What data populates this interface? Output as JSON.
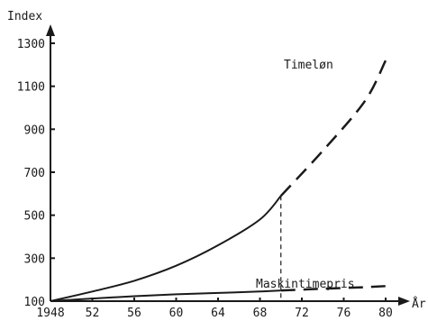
{
  "chart_data": {
    "type": "line",
    "title": "",
    "ylabel": "Index",
    "xlabel": "År",
    "xlim": [
      1948,
      1981
    ],
    "ylim": [
      100,
      1400
    ],
    "x_ticks": [
      1948,
      1952,
      1956,
      1960,
      1964,
      1968,
      1972,
      1976,
      1980
    ],
    "x_tick_labels": [
      "1948",
      "52",
      "56",
      "60",
      "64",
      "68",
      "72",
      "76",
      "80"
    ],
    "y_ticks": [
      100,
      300,
      500,
      700,
      900,
      1100,
      1300
    ],
    "y_tick_labels": [
      "100",
      "300",
      "500",
      "700",
      "900",
      "1100",
      "1300"
    ],
    "grid": false,
    "series": [
      {
        "name": "Timeløn",
        "color": "#1a1a1a",
        "x": [
          1948,
          1952,
          1956,
          1960,
          1964,
          1968,
          1970
        ],
        "y": [
          100,
          145,
          195,
          265,
          360,
          480,
          590
        ],
        "projection": {
          "x": [
            1970,
            1974,
            1978,
            1980
          ],
          "y": [
            590,
            800,
            1030,
            1220
          ]
        }
      },
      {
        "name": "Maskintimepris",
        "color": "#1a1a1a",
        "x": [
          1948,
          1952,
          1956,
          1960,
          1964,
          1968,
          1970
        ],
        "y": [
          100,
          112,
          123,
          132,
          138,
          145,
          150
        ],
        "projection": {
          "x": [
            1970,
            1974,
            1978,
            1980
          ],
          "y": [
            150,
            158,
            165,
            170
          ]
        }
      }
    ],
    "reference_line": {
      "x": 1970
    }
  }
}
